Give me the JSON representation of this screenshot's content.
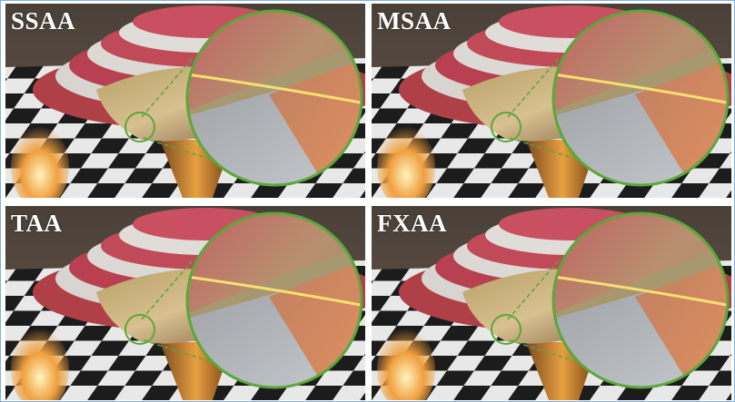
{
  "panels": [
    {
      "label": "SSAA"
    },
    {
      "label": "MSAA"
    },
    {
      "label": "TAA"
    },
    {
      "label": "FXAA"
    }
  ],
  "colors": {
    "magnifier": "#5aa83a",
    "border": "#7fb0e0",
    "label": "#ffffff"
  }
}
